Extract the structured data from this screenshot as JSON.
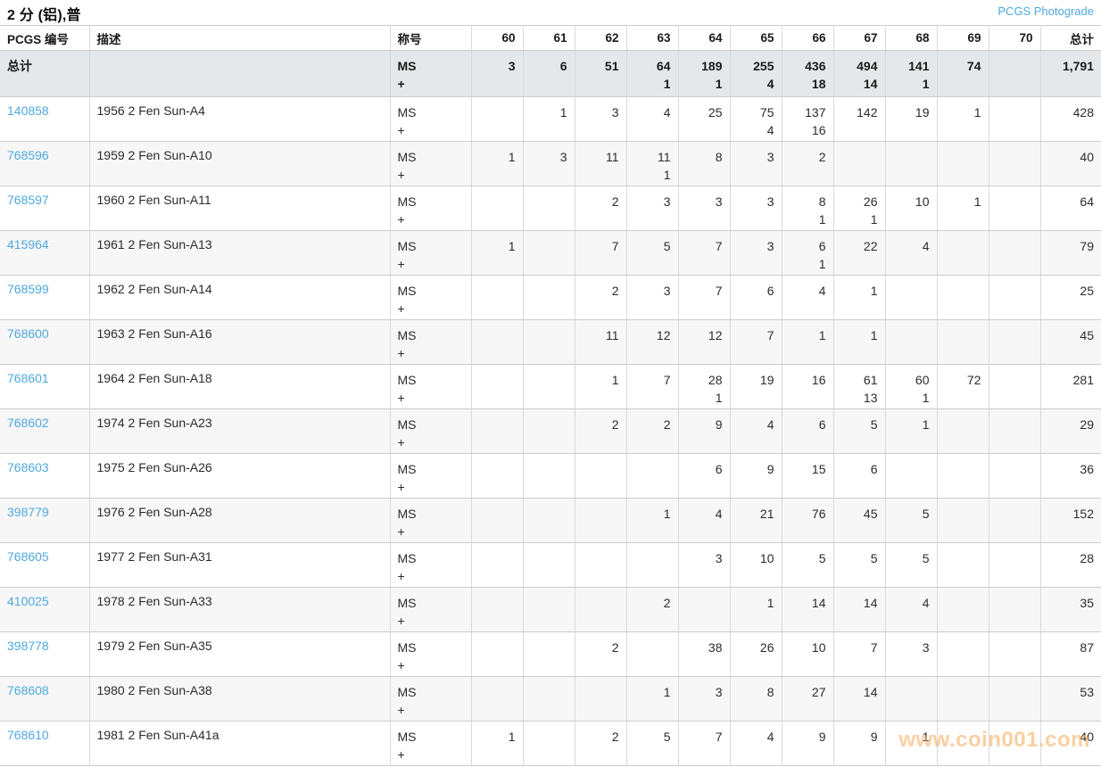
{
  "page": {
    "title": "2 分 (铝),普",
    "photograde_link": "PCGS Photograde"
  },
  "watermark": "www.coin001.com",
  "colors": {
    "link_blue": "#4fa8de",
    "photograde_blue": "#3d9fdf",
    "totals_row_bg": "#e4e8eb",
    "alt_row_bg": "#f7f7f7",
    "watermark_orange": "#f7a958"
  },
  "table": {
    "headers": {
      "pcgs_number": "PCGS 编号",
      "description": "描述",
      "designation": "称号",
      "grades": [
        "60",
        "61",
        "62",
        "63",
        "64",
        "65",
        "66",
        "67",
        "68",
        "69",
        "70"
      ],
      "total": "总计"
    },
    "designation": {
      "line1": "MS",
      "line2": "+"
    },
    "totals": {
      "label": "总计",
      "ms": [
        "3",
        "6",
        "51",
        "64",
        "189",
        "255",
        "436",
        "494",
        "141",
        "74",
        ""
      ],
      "plus": [
        "",
        "",
        "",
        "1",
        "1",
        "4",
        "18",
        "14",
        "1",
        "",
        ""
      ],
      "total": "1,791"
    },
    "rows": [
      {
        "pcgs": "140858",
        "desc": "1956 2 Fen Sun-A4",
        "ms": [
          "",
          "1",
          "3",
          "4",
          "25",
          "75",
          "137",
          "142",
          "19",
          "1",
          ""
        ],
        "plus": [
          "",
          "",
          "",
          "",
          "",
          "4",
          "16",
          "",
          "",
          "",
          ""
        ],
        "total": "428"
      },
      {
        "pcgs": "768596",
        "desc": "1959 2 Fen Sun-A10",
        "ms": [
          "1",
          "3",
          "11",
          "11",
          "8",
          "3",
          "2",
          "",
          "",
          "",
          ""
        ],
        "plus": [
          "",
          "",
          "",
          "1",
          "",
          "",
          "",
          "",
          "",
          "",
          ""
        ],
        "total": "40"
      },
      {
        "pcgs": "768597",
        "desc": "1960 2 Fen Sun-A11",
        "ms": [
          "",
          "",
          "2",
          "3",
          "3",
          "3",
          "8",
          "26",
          "10",
          "1",
          ""
        ],
        "plus": [
          "",
          "",
          "",
          "",
          "",
          "",
          "1",
          "1",
          "",
          "",
          ""
        ],
        "total": "64"
      },
      {
        "pcgs": "415964",
        "desc": "1961 2 Fen Sun-A13",
        "ms": [
          "1",
          "",
          "7",
          "5",
          "7",
          "3",
          "6",
          "22",
          "4",
          "",
          ""
        ],
        "plus": [
          "",
          "",
          "",
          "",
          "",
          "",
          "1",
          "",
          "",
          "",
          ""
        ],
        "total": "79"
      },
      {
        "pcgs": "768599",
        "desc": "1962 2 Fen Sun-A14",
        "ms": [
          "",
          "",
          "2",
          "3",
          "7",
          "6",
          "4",
          "1",
          "",
          "",
          ""
        ],
        "plus": [
          "",
          "",
          "",
          "",
          "",
          "",
          "",
          "",
          "",
          "",
          ""
        ],
        "total": "25"
      },
      {
        "pcgs": "768600",
        "desc": "1963 2 Fen Sun-A16",
        "ms": [
          "",
          "",
          "11",
          "12",
          "12",
          "7",
          "1",
          "1",
          "",
          "",
          ""
        ],
        "plus": [
          "",
          "",
          "",
          "",
          "",
          "",
          "",
          "",
          "",
          "",
          ""
        ],
        "total": "45"
      },
      {
        "pcgs": "768601",
        "desc": "1964 2 Fen Sun-A18",
        "ms": [
          "",
          "",
          "1",
          "7",
          "28",
          "19",
          "16",
          "61",
          "60",
          "72",
          ""
        ],
        "plus": [
          "",
          "",
          "",
          "",
          "1",
          "",
          "",
          "13",
          "1",
          "",
          ""
        ],
        "total": "281"
      },
      {
        "pcgs": "768602",
        "desc": "1974 2 Fen Sun-A23",
        "ms": [
          "",
          "",
          "2",
          "2",
          "9",
          "4",
          "6",
          "5",
          "1",
          "",
          ""
        ],
        "plus": [
          "",
          "",
          "",
          "",
          "",
          "",
          "",
          "",
          "",
          "",
          ""
        ],
        "total": "29"
      },
      {
        "pcgs": "768603",
        "desc": "1975 2 Fen Sun-A26",
        "ms": [
          "",
          "",
          "",
          "",
          "6",
          "9",
          "15",
          "6",
          "",
          "",
          ""
        ],
        "plus": [
          "",
          "",
          "",
          "",
          "",
          "",
          "",
          "",
          "",
          "",
          ""
        ],
        "total": "36"
      },
      {
        "pcgs": "398779",
        "desc": "1976 2 Fen Sun-A28",
        "ms": [
          "",
          "",
          "",
          "1",
          "4",
          "21",
          "76",
          "45",
          "5",
          "",
          ""
        ],
        "plus": [
          "",
          "",
          "",
          "",
          "",
          "",
          "",
          "",
          "",
          "",
          ""
        ],
        "total": "152"
      },
      {
        "pcgs": "768605",
        "desc": "1977 2 Fen Sun-A31",
        "ms": [
          "",
          "",
          "",
          "",
          "3",
          "10",
          "5",
          "5",
          "5",
          "",
          ""
        ],
        "plus": [
          "",
          "",
          "",
          "",
          "",
          "",
          "",
          "",
          "",
          "",
          ""
        ],
        "total": "28"
      },
      {
        "pcgs": "410025",
        "desc": "1978 2 Fen Sun-A33",
        "ms": [
          "",
          "",
          "",
          "2",
          "",
          "1",
          "14",
          "14",
          "4",
          "",
          ""
        ],
        "plus": [
          "",
          "",
          "",
          "",
          "",
          "",
          "",
          "",
          "",
          "",
          ""
        ],
        "total": "35"
      },
      {
        "pcgs": "398778",
        "desc": "1979 2 Fen Sun-A35",
        "ms": [
          "",
          "",
          "2",
          "",
          "38",
          "26",
          "10",
          "7",
          "3",
          "",
          ""
        ],
        "plus": [
          "",
          "",
          "",
          "",
          "",
          "",
          "",
          "",
          "",
          "",
          ""
        ],
        "total": "87"
      },
      {
        "pcgs": "768608",
        "desc": "1980 2 Fen Sun-A38",
        "ms": [
          "",
          "",
          "",
          "1",
          "3",
          "8",
          "27",
          "14",
          "",
          "",
          ""
        ],
        "plus": [
          "",
          "",
          "",
          "",
          "",
          "",
          "",
          "",
          "",
          "",
          ""
        ],
        "total": "53"
      },
      {
        "pcgs": "768610",
        "desc": "1981 2 Fen Sun-A41a",
        "ms": [
          "1",
          "",
          "2",
          "5",
          "7",
          "4",
          "9",
          "9",
          "1",
          "",
          ""
        ],
        "plus": [
          "",
          "",
          "",
          "",
          "",
          "",
          "",
          "",
          "",
          "",
          ""
        ],
        "total": "40"
      }
    ]
  }
}
